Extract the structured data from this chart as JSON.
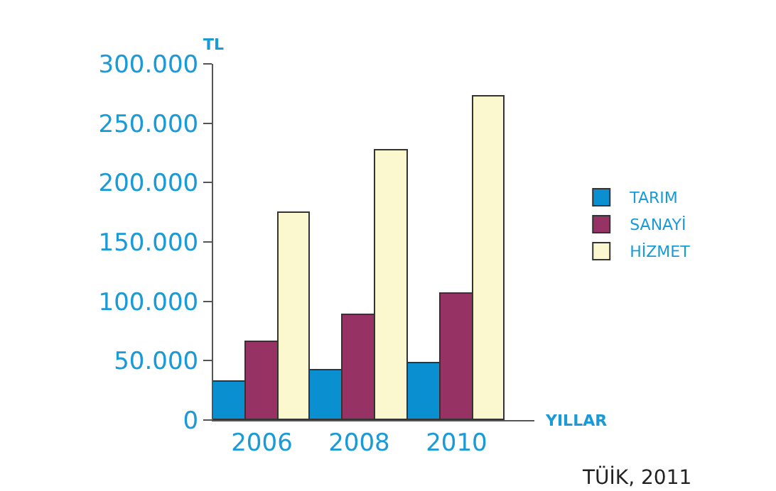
{
  "chart_data": {
    "type": "bar",
    "xlabel": "YILLAR",
    "ylabel": "TL",
    "categories": [
      "2006",
      "2008",
      "2010"
    ],
    "series": [
      {
        "name": "TARIM",
        "color": "#0a8fd0",
        "values": [
          32000,
          42000,
          48000
        ]
      },
      {
        "name": "SANAYİ",
        "color": "#963264",
        "values": [
          66000,
          89000,
          106000
        ]
      },
      {
        "name": "HİZMET",
        "color": "#fbf8cf",
        "values": [
          174000,
          227000,
          273000
        ]
      }
    ],
    "ylim": [
      0,
      300000
    ],
    "yticks": [
      {
        "value": 0,
        "label": "0"
      },
      {
        "value": 50000,
        "label": "50.000"
      },
      {
        "value": 100000,
        "label": "100.000"
      },
      {
        "value": 150000,
        "label": "150.000"
      },
      {
        "value": 200000,
        "label": "200.000"
      },
      {
        "value": 250000,
        "label": "250.000"
      },
      {
        "value": 300000,
        "label": "300.000"
      }
    ],
    "annotations": [
      "TÜİK, 2011"
    ],
    "legend": "right"
  }
}
